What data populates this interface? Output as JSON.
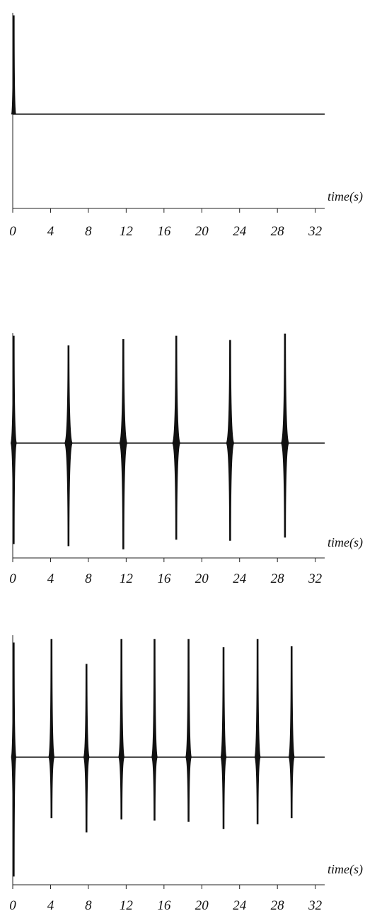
{
  "chart_data": [
    {
      "type": "line",
      "xlabel": "time(s)",
      "xlim": [
        0,
        33
      ],
      "xticks": [
        0,
        4,
        8,
        12,
        16,
        20,
        24,
        28,
        32
      ],
      "ylim": [
        -1,
        1
      ],
      "baseline": 0.0,
      "pulses": [
        {
          "t": 0.1,
          "amp_pos": 1.0,
          "amp_neg": 0.0,
          "width": 0.15
        }
      ]
    },
    {
      "type": "line",
      "xlabel": "time(s)",
      "xlim": [
        0,
        33
      ],
      "xticks": [
        0,
        4,
        8,
        12,
        16,
        20,
        24,
        28,
        32
      ],
      "ylim": [
        -1,
        1
      ],
      "baseline": 0.0,
      "pulses": [
        {
          "t": 0.1,
          "amp_pos": 1.0,
          "amp_neg": 0.94,
          "width": 0.3
        },
        {
          "t": 5.9,
          "amp_pos": 0.91,
          "amp_neg": 0.96,
          "width": 0.4
        },
        {
          "t": 11.7,
          "amp_pos": 0.97,
          "amp_neg": 0.99,
          "width": 0.4
        },
        {
          "t": 17.3,
          "amp_pos": 1.0,
          "amp_neg": 0.9,
          "width": 0.4
        },
        {
          "t": 23.0,
          "amp_pos": 0.96,
          "amp_neg": 0.91,
          "width": 0.4
        },
        {
          "t": 28.8,
          "amp_pos": 1.02,
          "amp_neg": 0.88,
          "width": 0.4
        }
      ]
    },
    {
      "type": "line",
      "xlabel": "time(s)",
      "xlim": [
        0,
        33
      ],
      "xticks": [
        0,
        4,
        8,
        12,
        16,
        20,
        24,
        28,
        32
      ],
      "ylim": [
        -1,
        1
      ],
      "baseline": 0.0,
      "pulses": [
        {
          "t": 0.1,
          "amp_pos": 0.96,
          "amp_neg": 1.0,
          "width": 0.25
        },
        {
          "t": 4.1,
          "amp_pos": 0.99,
          "amp_neg": 0.51,
          "width": 0.3
        },
        {
          "t": 7.8,
          "amp_pos": 0.78,
          "amp_neg": 0.63,
          "width": 0.3
        },
        {
          "t": 11.5,
          "amp_pos": 0.99,
          "amp_neg": 0.52,
          "width": 0.3
        },
        {
          "t": 15.0,
          "amp_pos": 0.99,
          "amp_neg": 0.53,
          "width": 0.3
        },
        {
          "t": 18.6,
          "amp_pos": 0.99,
          "amp_neg": 0.54,
          "width": 0.3
        },
        {
          "t": 22.3,
          "amp_pos": 0.92,
          "amp_neg": 0.6,
          "width": 0.3
        },
        {
          "t": 25.9,
          "amp_pos": 0.99,
          "amp_neg": 0.56,
          "width": 0.3
        },
        {
          "t": 29.5,
          "amp_pos": 0.93,
          "amp_neg": 0.51,
          "width": 0.3
        }
      ]
    }
  ]
}
